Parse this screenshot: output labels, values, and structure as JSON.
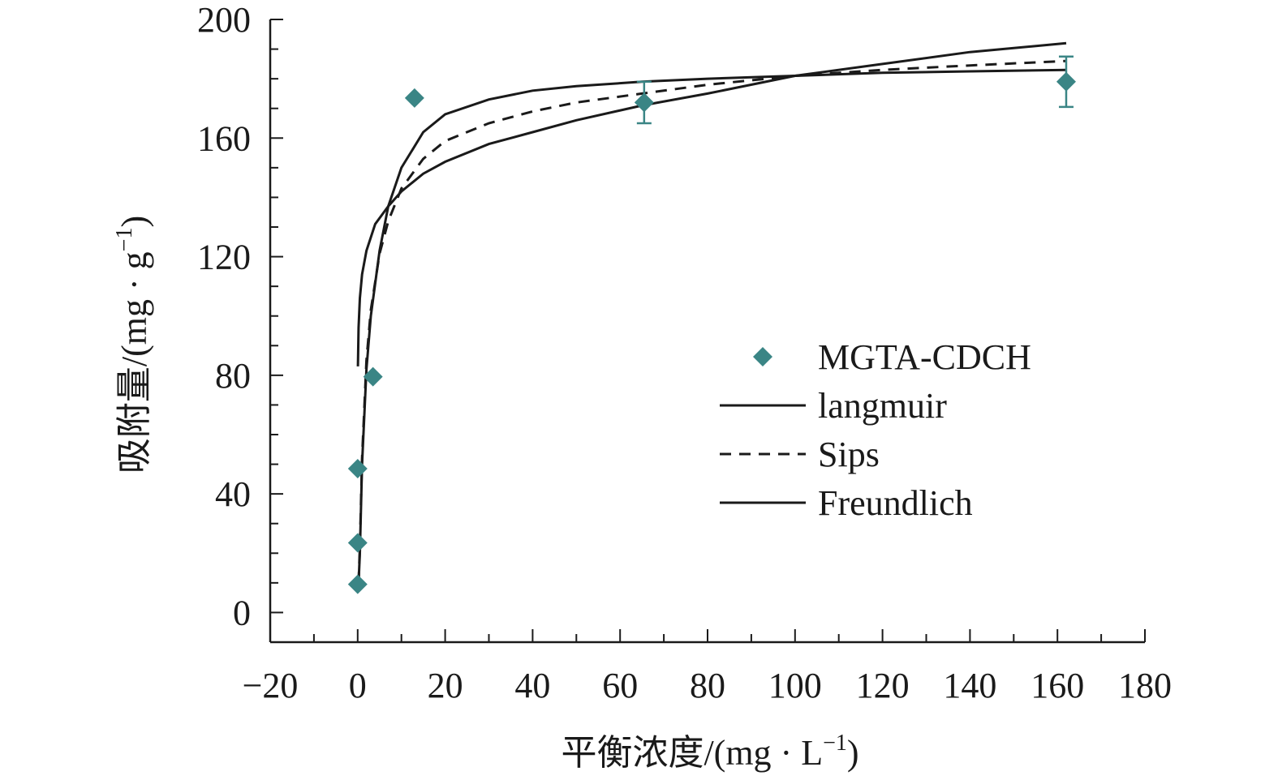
{
  "chart_data": {
    "type": "scatter",
    "xlabel_main": "平衡浓度/(mg · L",
    "xlabel_sup": "−1",
    "xlabel_end": ")",
    "ylabel_main": "吸附量/(mg · g",
    "ylabel_sup": "−1",
    "ylabel_end": ")",
    "xlim": [
      -20,
      180
    ],
    "ylim": [
      -10,
      200
    ],
    "x_ticks": [
      -20,
      0,
      20,
      40,
      60,
      80,
      100,
      120,
      140,
      160,
      180
    ],
    "x_tick_labels": [
      "−20",
      "0",
      "20",
      "40",
      "60",
      "80",
      "100",
      "120",
      "140",
      "160",
      "180"
    ],
    "y_ticks": [
      0,
      40,
      80,
      120,
      160,
      200
    ],
    "y_tick_labels": [
      "0",
      "40",
      "80",
      "120",
      "160",
      "200"
    ],
    "grid": false,
    "legend_position": "center-right",
    "marker_color": "#3a8585",
    "series": [
      {
        "name": "MGTA-CDCH",
        "kind": "points",
        "x": [
          0,
          0,
          0,
          3.5,
          13,
          65.5,
          162
        ],
        "y": [
          9.5,
          23.5,
          48.5,
          79.5,
          173.5,
          172,
          179
        ],
        "yerr": [
          0,
          0,
          0,
          0,
          0,
          7,
          8.5
        ]
      },
      {
        "name": "langmuir",
        "kind": "line",
        "style": "solid",
        "x": [
          0.2,
          0.5,
          1,
          2,
          3,
          5,
          7,
          10,
          15,
          20,
          30,
          40,
          50,
          65,
          80,
          100,
          120,
          140,
          162
        ],
        "y": [
          10,
          20,
          50,
          82,
          100,
          122,
          137,
          150,
          162,
          168,
          173,
          176,
          177.5,
          179,
          180,
          181,
          182,
          182.5,
          183
        ]
      },
      {
        "name": "Sips",
        "kind": "line",
        "style": "dashed",
        "x": [
          0.2,
          0.5,
          1,
          2,
          3,
          5,
          7,
          10,
          15,
          20,
          30,
          40,
          50,
          65,
          80,
          100,
          120,
          140,
          162
        ],
        "y": [
          10,
          22,
          52,
          85,
          102,
          121,
          132,
          143,
          153,
          159,
          165,
          169,
          172,
          175,
          178,
          181,
          183,
          184.5,
          186
        ]
      },
      {
        "name": "Freundlich",
        "kind": "line",
        "style": "solid",
        "x": [
          0.05,
          0.2,
          0.5,
          1,
          2,
          4,
          7,
          10,
          15,
          20,
          30,
          40,
          50,
          65,
          80,
          100,
          120,
          140,
          162
        ],
        "y": [
          83,
          96,
          106,
          114,
          122,
          131,
          137,
          142,
          148,
          152,
          158,
          162,
          166,
          171,
          175,
          181,
          185,
          189,
          192
        ]
      }
    ]
  }
}
